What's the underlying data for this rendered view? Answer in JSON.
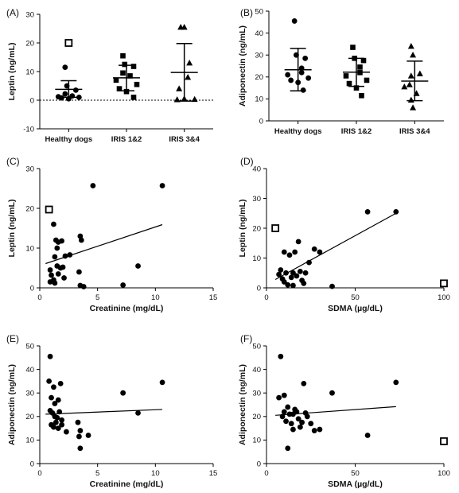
{
  "panels": [
    {
      "id": "A",
      "letter": "(A)",
      "type": "dot-category",
      "ylabel": "Leptin (ng/mL)",
      "ylim": [
        -10,
        30
      ],
      "yticks": [
        -10,
        0,
        10,
        20,
        30
      ],
      "zero_line": true,
      "categories": [
        {
          "label": "Healthy dogs",
          "marker": "circle",
          "points": [
            11.5,
            5.0,
            3.5,
            2.2,
            1.5,
            1.2,
            1.0,
            0.8,
            0.5
          ],
          "outliers": [
            {
              "y": 20.0,
              "marker": "open-square"
            }
          ],
          "mean": 3.8,
          "sd_low": 1.0,
          "sd_high": 6.8
        },
        {
          "label": "IRIS 1&2",
          "marker": "square",
          "points": [
            15.5,
            12.5,
            11.8,
            9.5,
            8.5,
            7.0,
            5.5,
            4.0,
            3.0,
            1.0
          ],
          "mean": 7.8,
          "sd_low": 3.3,
          "sd_high": 12.2
        },
        {
          "label": "IRIS 3&4",
          "marker": "triangle",
          "points": [
            25.5,
            25.5,
            13.0,
            8.0,
            4.0,
            0.5,
            0.3,
            0.2
          ],
          "mean": 9.7,
          "sd_low": -0.3,
          "sd_high": 19.8
        }
      ]
    },
    {
      "id": "B",
      "letter": "(B)",
      "type": "dot-category",
      "ylabel": "Adiponectin (ng/mL)",
      "ylim": [
        0,
        50
      ],
      "yticks": [
        0,
        10,
        20,
        30,
        40,
        50
      ],
      "zero_line": false,
      "categories": [
        {
          "label": "Healthy dogs",
          "marker": "circle",
          "points": [
            45.5,
            30.0,
            28.5,
            24.0,
            22.0,
            21.0,
            19.5,
            18.5,
            17.5,
            14.0
          ],
          "mean": 23.3,
          "sd_low": 13.7,
          "sd_high": 33.0
        },
        {
          "label": "IRIS 1&2",
          "marker": "square",
          "points": [
            33.5,
            28.5,
            27.5,
            24.5,
            22.0,
            20.5,
            18.5,
            17.0,
            15.0,
            11.5
          ],
          "mean": 22.2,
          "sd_low": 15.7,
          "sd_high": 28.5
        },
        {
          "label": "IRIS 3&4",
          "marker": "triangle",
          "points": [
            34.0,
            30.0,
            21.5,
            20.5,
            16.5,
            15.5,
            12.5,
            9.5,
            6.0
          ],
          "mean": 18.1,
          "sd_low": 9.2,
          "sd_high": 27.2
        }
      ]
    },
    {
      "id": "C",
      "letter": "(C)",
      "type": "scatter",
      "xlabel": "Creatinine (mg/dL)",
      "ylabel": "Leptin (ng/mL)",
      "xlim": [
        0,
        15
      ],
      "ylim": [
        0,
        30
      ],
      "xticks": [
        0,
        5,
        10,
        15
      ],
      "yticks": [
        0,
        10,
        20,
        30
      ],
      "points": [
        [
          1.2,
          16.0
        ],
        [
          1.4,
          12.0
        ],
        [
          1.6,
          11.5
        ],
        [
          1.9,
          11.8
        ],
        [
          1.5,
          10.0
        ],
        [
          1.3,
          7.8
        ],
        [
          2.2,
          8.0
        ],
        [
          2.6,
          8.3
        ],
        [
          0.9,
          4.5
        ],
        [
          1.0,
          3.2
        ],
        [
          1.2,
          2.0
        ],
        [
          0.9,
          1.5
        ],
        [
          1.3,
          1.2
        ],
        [
          1.6,
          3.5
        ],
        [
          1.8,
          5.0
        ],
        [
          2.0,
          5.2
        ],
        [
          2.1,
          2.5
        ],
        [
          1.5,
          5.5
        ],
        [
          3.5,
          13.0
        ],
        [
          3.6,
          12.0
        ],
        [
          3.4,
          4.0
        ],
        [
          3.5,
          0.6
        ],
        [
          3.8,
          0.3
        ],
        [
          4.6,
          25.7
        ],
        [
          7.2,
          0.7
        ],
        [
          8.5,
          5.5
        ],
        [
          10.6,
          25.7
        ]
      ],
      "outliers": [
        {
          "x": 0.8,
          "y": 19.7,
          "marker": "open-square"
        }
      ],
      "fit": [
        [
          0.5,
          6.1
        ],
        [
          10.6,
          15.9
        ]
      ]
    },
    {
      "id": "D",
      "letter": "(D)",
      "type": "scatter",
      "xlabel": "SDMA (µg/dL)",
      "ylabel": "Leptin (ng/mL)",
      "xlim": [
        0,
        100
      ],
      "ylim": [
        0,
        40
      ],
      "xticks": [
        0,
        50,
        100
      ],
      "yticks": [
        0,
        10,
        20,
        30,
        40
      ],
      "points": [
        [
          7,
          4.5
        ],
        [
          8,
          6.0
        ],
        [
          9,
          3.0
        ],
        [
          10,
          2.0
        ],
        [
          10,
          12.0
        ],
        [
          11,
          5.0
        ],
        [
          12,
          1.0
        ],
        [
          13,
          11.0
        ],
        [
          14,
          3.5
        ],
        [
          15,
          5.0
        ],
        [
          15,
          0.8
        ],
        [
          16,
          12.0
        ],
        [
          17,
          4.0
        ],
        [
          18,
          15.5
        ],
        [
          19,
          5.5
        ],
        [
          20,
          2.5
        ],
        [
          21,
          1.5
        ],
        [
          22,
          5.0
        ],
        [
          24,
          8.5
        ],
        [
          27,
          13.0
        ],
        [
          30,
          12.0
        ],
        [
          37,
          0.5
        ],
        [
          57,
          25.5
        ],
        [
          73,
          25.5
        ]
      ],
      "outliers": [
        {
          "x": 5,
          "y": 20.0,
          "marker": "open-square"
        },
        {
          "x": 100,
          "y": 1.5,
          "marker": "open-square"
        }
      ],
      "fit": [
        [
          5,
          2.8
        ],
        [
          73,
          25.0
        ]
      ]
    },
    {
      "id": "E",
      "letter": "(E)",
      "type": "scatter",
      "xlabel": "Creatinine (mg/dL)",
      "ylabel": "Adiponectin (ng/mL)",
      "xlim": [
        0,
        15
      ],
      "ylim": [
        0,
        50
      ],
      "xticks": [
        0,
        5,
        10,
        15
      ],
      "yticks": [
        0,
        10,
        20,
        30,
        40,
        50
      ],
      "points": [
        [
          0.9,
          45.5
        ],
        [
          0.8,
          35.0
        ],
        [
          1.2,
          32.5
        ],
        [
          1.8,
          34.0
        ],
        [
          1.0,
          28.0
        ],
        [
          1.3,
          25.5
        ],
        [
          1.6,
          27.0
        ],
        [
          0.9,
          22.5
        ],
        [
          1.1,
          21.5
        ],
        [
          1.3,
          20.0
        ],
        [
          1.5,
          19.5
        ],
        [
          1.7,
          22.0
        ],
        [
          1.9,
          18.5
        ],
        [
          1.0,
          16.5
        ],
        [
          1.2,
          15.5
        ],
        [
          1.4,
          17.5
        ],
        [
          1.6,
          15.0
        ],
        [
          1.9,
          16.5
        ],
        [
          2.3,
          13.5
        ],
        [
          3.3,
          17.5
        ],
        [
          3.5,
          14.0
        ],
        [
          3.4,
          11.5
        ],
        [
          3.5,
          6.5
        ],
        [
          4.2,
          12.0
        ],
        [
          7.2,
          30.0
        ],
        [
          8.5,
          21.5
        ],
        [
          10.6,
          34.5
        ]
      ],
      "fit": [
        [
          0.5,
          21.0
        ],
        [
          10.6,
          23.0
        ]
      ]
    },
    {
      "id": "F",
      "letter": "(F)",
      "type": "scatter",
      "xlabel": "SDMA (µg/dL)",
      "ylabel": "Adiponectin (ng/mL)",
      "xlim": [
        0,
        100
      ],
      "ylim": [
        0,
        50
      ],
      "xticks": [
        0,
        50,
        100
      ],
      "yticks": [
        0,
        10,
        20,
        30,
        40,
        50
      ],
      "points": [
        [
          8,
          45.5
        ],
        [
          7,
          28.0
        ],
        [
          9,
          20.0
        ],
        [
          10,
          29.0
        ],
        [
          10,
          22.0
        ],
        [
          11,
          18.0
        ],
        [
          12,
          6.5
        ],
        [
          12,
          24.0
        ],
        [
          13,
          21.0
        ],
        [
          14,
          17.0
        ],
        [
          15,
          14.5
        ],
        [
          15,
          21.0
        ],
        [
          16,
          23.0
        ],
        [
          17,
          22.0
        ],
        [
          18,
          19.0
        ],
        [
          19,
          15.5
        ],
        [
          20,
          17.5
        ],
        [
          21,
          34.0
        ],
        [
          22,
          21.5
        ],
        [
          23,
          20.0
        ],
        [
          25,
          17.0
        ],
        [
          27,
          14.0
        ],
        [
          30,
          14.5
        ],
        [
          37,
          30.0
        ],
        [
          57,
          12.0
        ],
        [
          73,
          34.5
        ]
      ],
      "outliers": [
        {
          "x": 100,
          "y": 9.5,
          "marker": "open-square"
        }
      ],
      "fit": [
        [
          5,
          20.5
        ],
        [
          73,
          24.2
        ]
      ]
    }
  ]
}
